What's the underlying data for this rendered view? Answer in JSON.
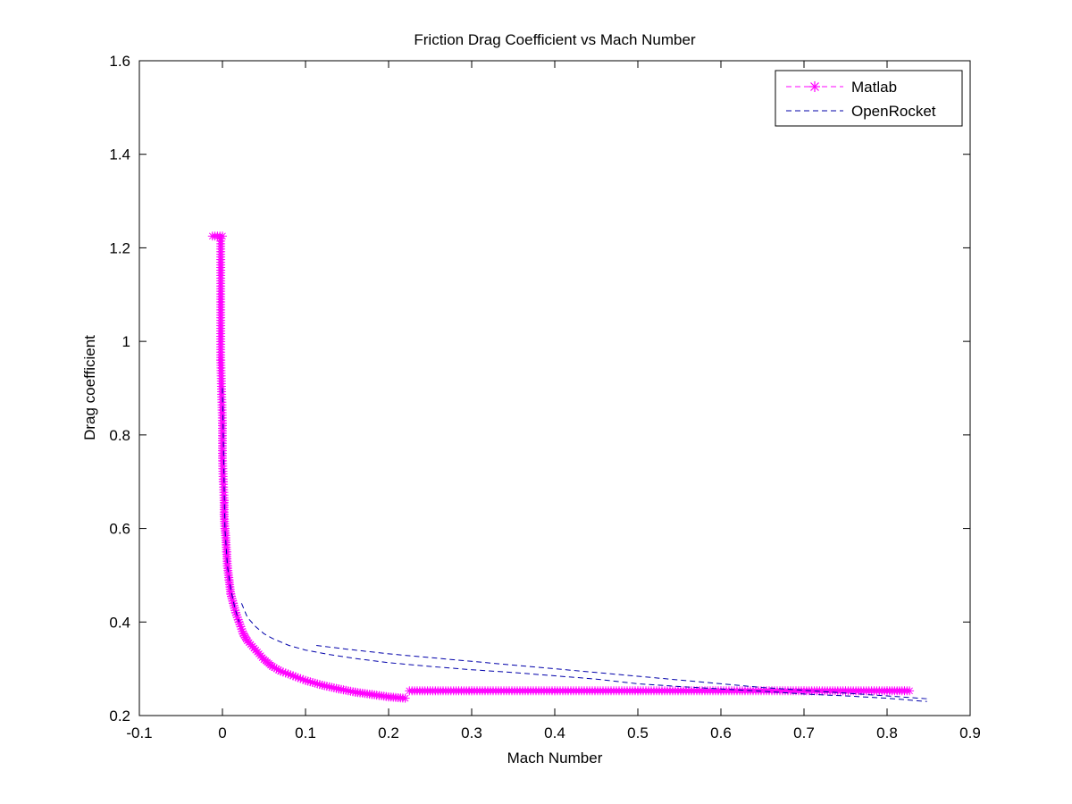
{
  "chart_data": {
    "type": "line",
    "title": "Friction Drag Coefficient vs Mach Number",
    "xlabel": "Mach Number",
    "ylabel": "Drag coefficient",
    "xlim": [
      -0.1,
      0.9
    ],
    "ylim": [
      0.2,
      1.6
    ],
    "xticks": [
      "-0.1",
      "0",
      "0.1",
      "0.2",
      "0.3",
      "0.4",
      "0.5",
      "0.6",
      "0.7",
      "0.8",
      "0.9"
    ],
    "yticks": [
      "0.2",
      "0.4",
      "0.6",
      "0.8",
      "1",
      "1.2",
      "1.4",
      "1.6"
    ],
    "grid": false,
    "legend_position": "top-right",
    "series": [
      {
        "name": "Matlab",
        "color": "#ff00ff",
        "line_style": "solid",
        "marker": "asterisk",
        "segments": [
          [
            [
              -0.012,
              1.225
            ],
            [
              0.0,
              1.225
            ]
          ],
          [
            [
              -0.002,
              1.22
            ],
            [
              -0.002,
              0.96
            ],
            [
              0.0,
              0.825
            ],
            [
              0.0,
              0.75
            ],
            [
              0.001,
              0.7
            ],
            [
              0.002,
              0.66
            ],
            [
              0.002,
              0.63
            ],
            [
              0.003,
              0.6
            ],
            [
              0.004,
              0.58
            ],
            [
              0.005,
              0.55
            ],
            [
              0.006,
              0.52
            ],
            [
              0.008,
              0.49
            ],
            [
              0.01,
              0.46
            ],
            [
              0.013,
              0.44
            ],
            [
              0.016,
              0.42
            ],
            [
              0.02,
              0.4
            ],
            [
              0.025,
              0.375
            ],
            [
              0.03,
              0.36
            ],
            [
              0.04,
              0.34
            ],
            [
              0.05,
              0.32
            ],
            [
              0.06,
              0.305
            ],
            [
              0.07,
              0.295
            ],
            [
              0.085,
              0.285
            ],
            [
              0.1,
              0.275
            ],
            [
              0.12,
              0.265
            ],
            [
              0.14,
              0.257
            ],
            [
              0.16,
              0.25
            ],
            [
              0.18,
              0.245
            ],
            [
              0.2,
              0.24
            ],
            [
              0.22,
              0.237
            ]
          ],
          [
            [
              0.225,
              0.253
            ],
            [
              0.3,
              0.253
            ],
            [
              0.4,
              0.253
            ],
            [
              0.5,
              0.253
            ],
            [
              0.6,
              0.253
            ],
            [
              0.7,
              0.253
            ],
            [
              0.8,
              0.253
            ],
            [
              0.827,
              0.253
            ]
          ]
        ]
      },
      {
        "name": "OpenRocket",
        "color": "#0000aa",
        "line_style": "dashed",
        "marker": "none",
        "segments": [
          [
            [
              0.0,
              0.9
            ],
            [
              0.003,
              0.6
            ],
            [
              0.006,
              0.52
            ],
            [
              0.01,
              0.47
            ],
            [
              0.015,
              0.43
            ],
            [
              0.02,
              0.4
            ]
          ],
          [
            [
              0.023,
              0.44
            ],
            [
              0.03,
              0.41
            ],
            [
              0.04,
              0.39
            ],
            [
              0.05,
              0.375
            ],
            [
              0.06,
              0.365
            ],
            [
              0.08,
              0.35
            ],
            [
              0.1,
              0.34
            ],
            [
              0.13,
              0.33
            ],
            [
              0.16,
              0.322
            ],
            [
              0.2,
              0.313
            ],
            [
              0.25,
              0.305
            ],
            [
              0.3,
              0.298
            ],
            [
              0.35,
              0.292
            ],
            [
              0.4,
              0.285
            ],
            [
              0.45,
              0.278
            ],
            [
              0.5,
              0.268
            ],
            [
              0.55,
              0.262
            ],
            [
              0.6,
              0.257
            ],
            [
              0.65,
              0.252
            ],
            [
              0.7,
              0.246
            ],
            [
              0.75,
              0.242
            ],
            [
              0.8,
              0.237
            ],
            [
              0.848,
              0.23
            ]
          ],
          [
            [
              0.113,
              0.35
            ],
            [
              0.15,
              0.342
            ],
            [
              0.2,
              0.332
            ],
            [
              0.25,
              0.324
            ],
            [
              0.3,
              0.316
            ],
            [
              0.35,
              0.308
            ],
            [
              0.4,
              0.3
            ],
            [
              0.45,
              0.292
            ],
            [
              0.5,
              0.284
            ],
            [
              0.55,
              0.276
            ],
            [
              0.6,
              0.268
            ],
            [
              0.65,
              0.26
            ],
            [
              0.7,
              0.254
            ],
            [
              0.75,
              0.248
            ],
            [
              0.8,
              0.242
            ],
            [
              0.848,
              0.236
            ]
          ]
        ]
      }
    ]
  }
}
